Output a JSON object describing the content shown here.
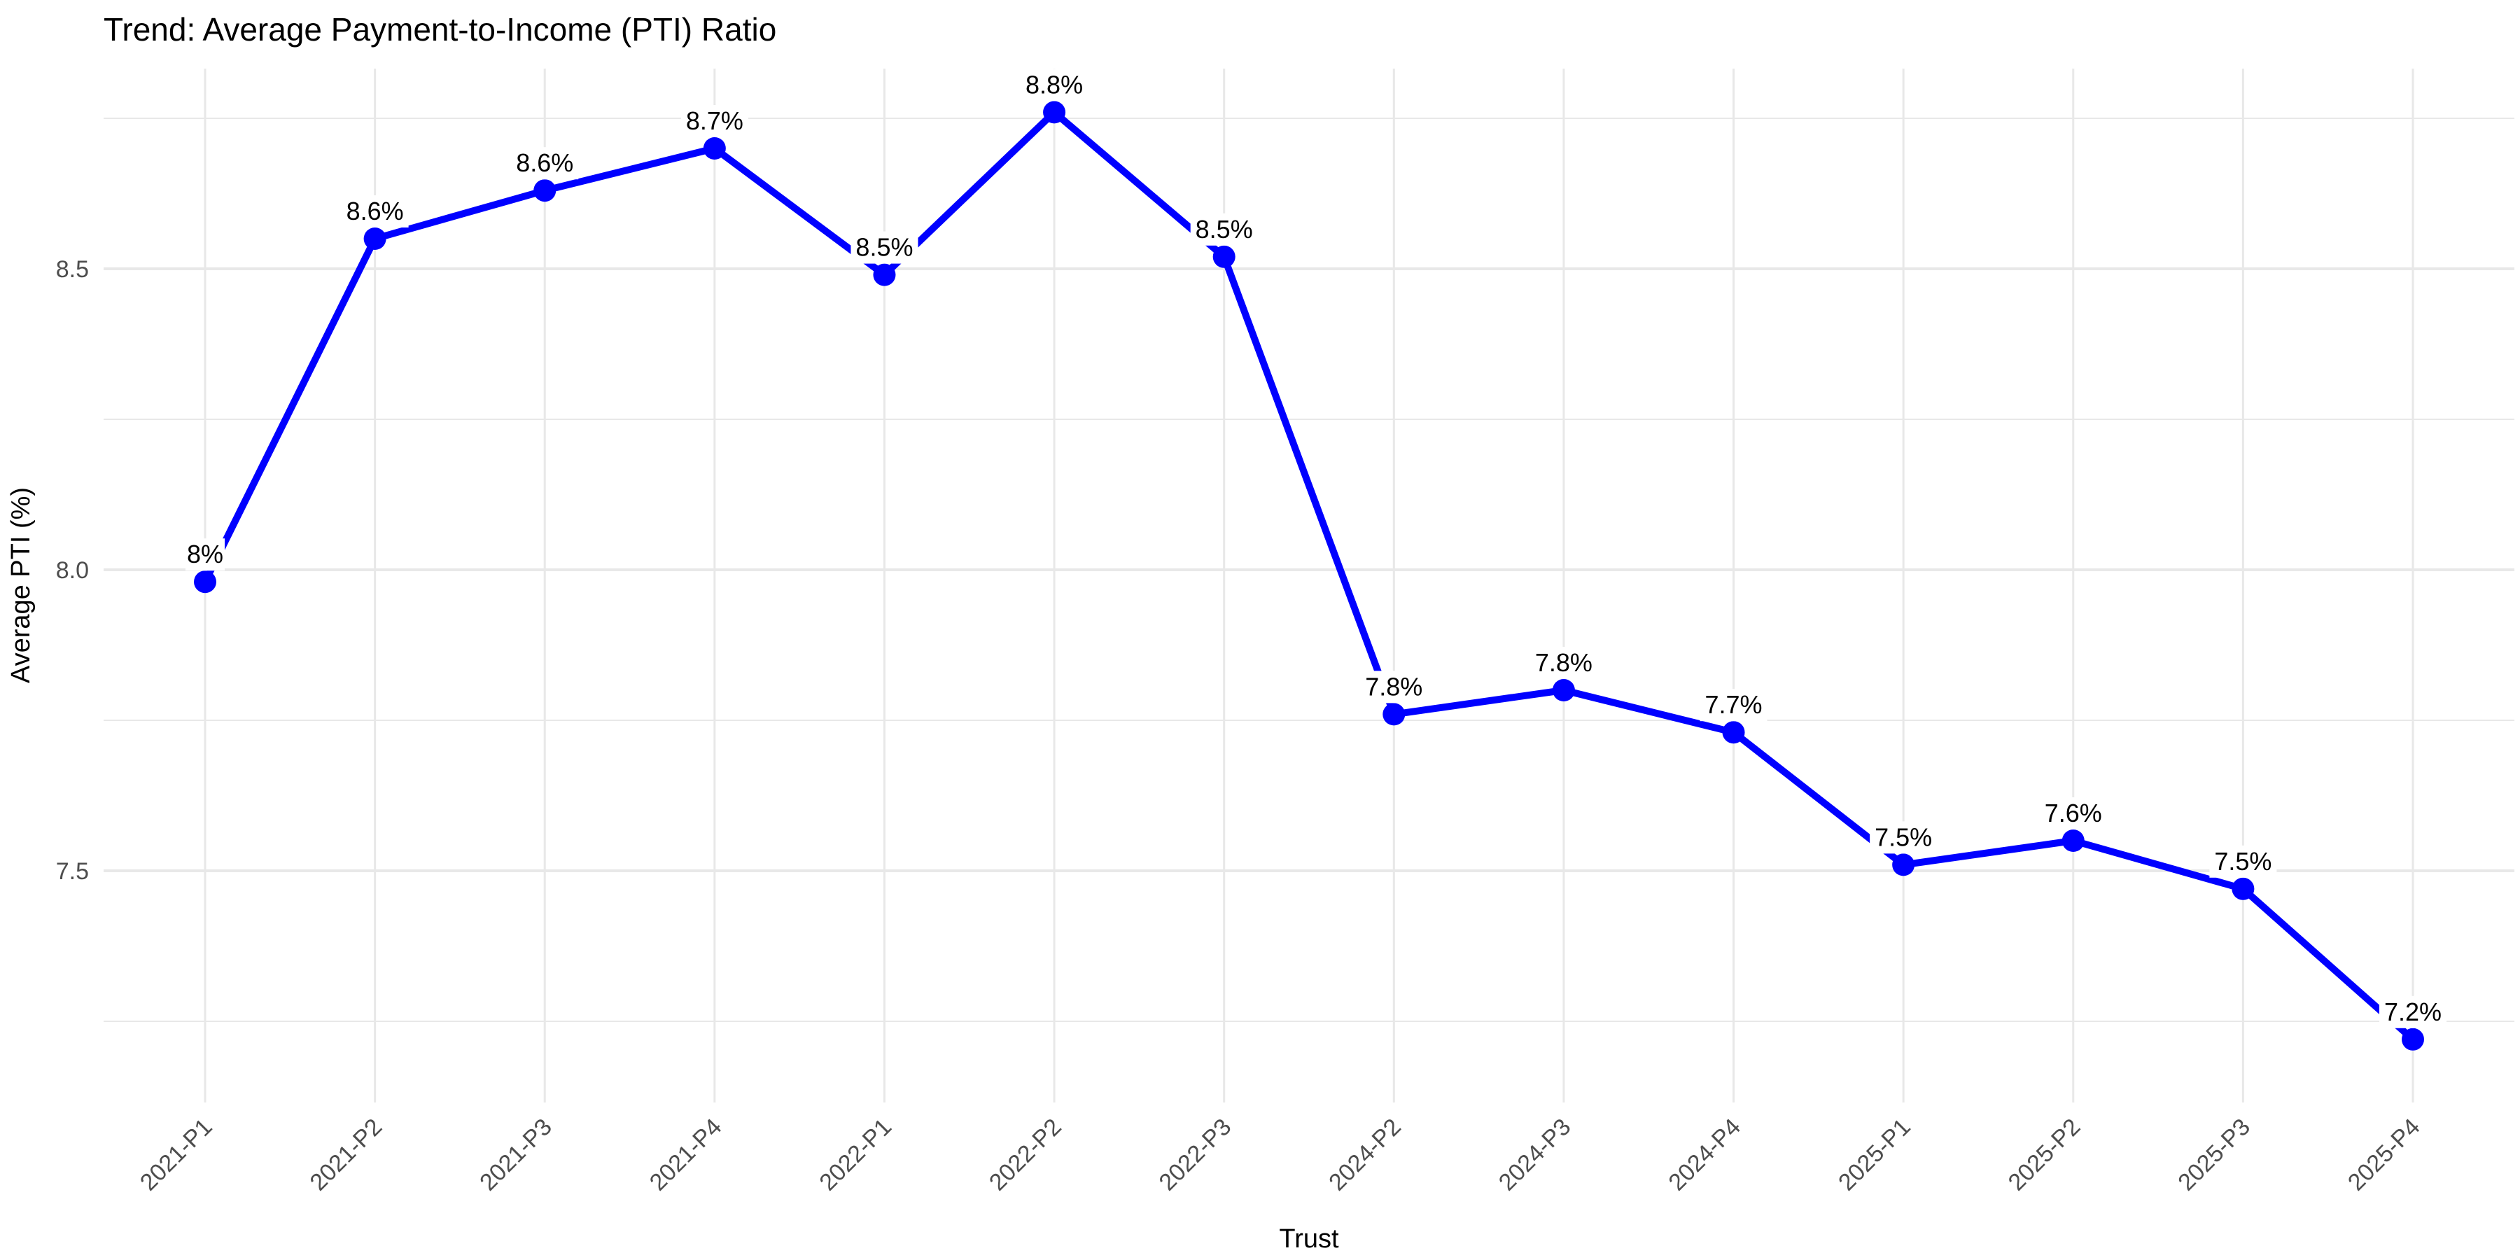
{
  "title": "Trend: Average Payment-to-Income (PTI) Ratio",
  "x_axis_title": "Trust",
  "y_axis_title": "Average PTI (%)",
  "y_tick_labels": [
    "7.5",
    "8.0",
    "8.5"
  ],
  "colors": {
    "line": "#0000FF",
    "point": "#0000FF",
    "grid": "#E8E8E8",
    "tick_label": "#4D4D4D",
    "text": "#000000",
    "background": "#FFFFFF",
    "label_background": "#FFFFFF"
  },
  "chart_data": {
    "type": "line",
    "title": "Trend: Average Payment-to-Income (PTI) Ratio",
    "xlabel": "Trust",
    "ylabel": "Average PTI (%)",
    "legend": "none",
    "grid": true,
    "categories": [
      "2021-P1",
      "2021-P2",
      "2021-P3",
      "2021-P4",
      "2022-P1",
      "2022-P2",
      "2022-P3",
      "2024-P2",
      "2024-P3",
      "2024-P4",
      "2025-P1",
      "2025-P2",
      "2025-P3",
      "2025-P4"
    ],
    "values": [
      7.98,
      8.55,
      8.63,
      8.7,
      8.49,
      8.76,
      8.52,
      7.76,
      7.8,
      7.73,
      7.51,
      7.55,
      7.47,
      7.22
    ],
    "point_labels": [
      "8%",
      "8.6%",
      "8.6%",
      "8.7%",
      "8.5%",
      "8.8%",
      "8.5%",
      "7.8%",
      "7.8%",
      "7.7%",
      "7.5%",
      "7.6%",
      "7.5%",
      "7.2%"
    ],
    "ylim": [
      7.12,
      8.84
    ],
    "y_major_gridlines": [
      7.5,
      8.0,
      8.5
    ],
    "y_minor_gridlines": [
      7.25,
      7.75,
      8.25,
      8.75
    ]
  }
}
